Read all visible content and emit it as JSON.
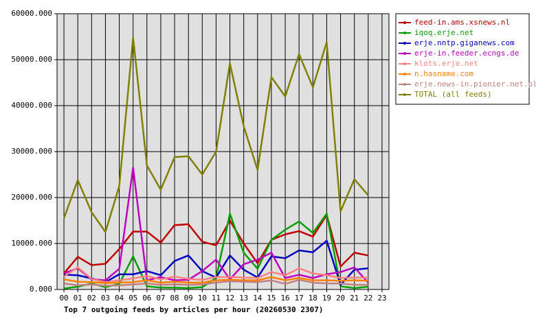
{
  "chart_data": {
    "type": "line",
    "title": "Top 7 outgoing feeds by articles per hour (20260530 2307)",
    "categories": [
      "00",
      "01",
      "02",
      "03",
      "04",
      "05",
      "06",
      "07",
      "08",
      "09",
      "10",
      "11",
      "12",
      "13",
      "14",
      "15",
      "16",
      "17",
      "18",
      "19",
      "20",
      "21",
      "22",
      "23"
    ],
    "ylim": [
      0,
      60000
    ],
    "yticks": [
      {
        "value": 0,
        "label": "0.000"
      },
      {
        "value": 10000,
        "label": "10000.000"
      },
      {
        "value": 20000,
        "label": "20000.000"
      },
      {
        "value": 30000,
        "label": "30000.000"
      },
      {
        "value": 40000,
        "label": "40000.000"
      },
      {
        "value": 50000,
        "label": "50000.000"
      },
      {
        "value": 60000,
        "label": "60000.000"
      }
    ],
    "grid": true,
    "legend": "right",
    "series": [
      {
        "name": "feed-in.ams.xsnews.nl",
        "color": "#c00000",
        "values": [
          3500,
          7100,
          5300,
          5600,
          8800,
          12600,
          12600,
          10200,
          14000,
          14200,
          10400,
          9600,
          15000,
          10000,
          5700,
          10800,
          12000,
          12700,
          11500,
          16200,
          5000,
          8000,
          7400,
          null
        ]
      },
      {
        "name": "iqoq.erje.net",
        "color": "#00a000",
        "values": [
          200,
          600,
          1300,
          500,
          1200,
          7200,
          700,
          400,
          400,
          300,
          500,
          2500,
          16500,
          8000,
          4500,
          10800,
          13000,
          14800,
          12300,
          16500,
          700,
          300,
          600,
          null
        ]
      },
      {
        "name": "erje.nntp.giganews.com",
        "color": "#0000c0",
        "values": [
          3200,
          3100,
          2400,
          1600,
          3300,
          3300,
          4000,
          3100,
          6200,
          7400,
          4000,
          2600,
          7400,
          4300,
          2600,
          7200,
          6800,
          8500,
          8100,
          10600,
          1000,
          4300,
          4600,
          null
        ]
      },
      {
        "name": "erje-in.feeder.ecngs.de",
        "color": "#c000c0",
        "values": [
          3500,
          4600,
          2200,
          2000,
          4500,
          26500,
          2000,
          2700,
          2000,
          2100,
          4000,
          6500,
          2200,
          5500,
          6500,
          8000,
          2500,
          3200,
          2500,
          3300,
          3800,
          4800,
          1500,
          null
        ]
      },
      {
        "name": "klots.erje.net",
        "color": "#ff8080",
        "values": [
          2800,
          4800,
          2300,
          1600,
          2000,
          2400,
          2900,
          2200,
          2800,
          2300,
          2100,
          2700,
          2700,
          2600,
          2500,
          3800,
          3100,
          4600,
          3500,
          3100,
          2500,
          2600,
          2600,
          null
        ]
      },
      {
        "name": "n.hasname.com",
        "color": "#ff8000",
        "values": [
          2200,
          1700,
          1600,
          1400,
          1500,
          1600,
          2000,
          1500,
          1700,
          1500,
          1500,
          2000,
          2100,
          2000,
          2000,
          2700,
          2000,
          2500,
          2000,
          2000,
          1900,
          2000,
          1900,
          null
        ]
      },
      {
        "name": "erje.news-in.pionier.net.pl",
        "color": "#c08080",
        "values": [
          1300,
          900,
          1100,
          800,
          900,
          1100,
          1300,
          1000,
          1100,
          1000,
          1100,
          1500,
          1800,
          1700,
          1600,
          2000,
          1200,
          2100,
          1500,
          1300,
          1300,
          1000,
          1000,
          null
        ]
      },
      {
        "name": "TOTAL (all feeds)",
        "color": "#808000",
        "values": [
          15500,
          23800,
          16800,
          12500,
          22500,
          54800,
          27000,
          21700,
          28800,
          29000,
          25000,
          30000,
          49200,
          35500,
          26000,
          46200,
          42000,
          51200,
          44000,
          53800,
          17000,
          24000,
          20500,
          null
        ]
      }
    ]
  }
}
